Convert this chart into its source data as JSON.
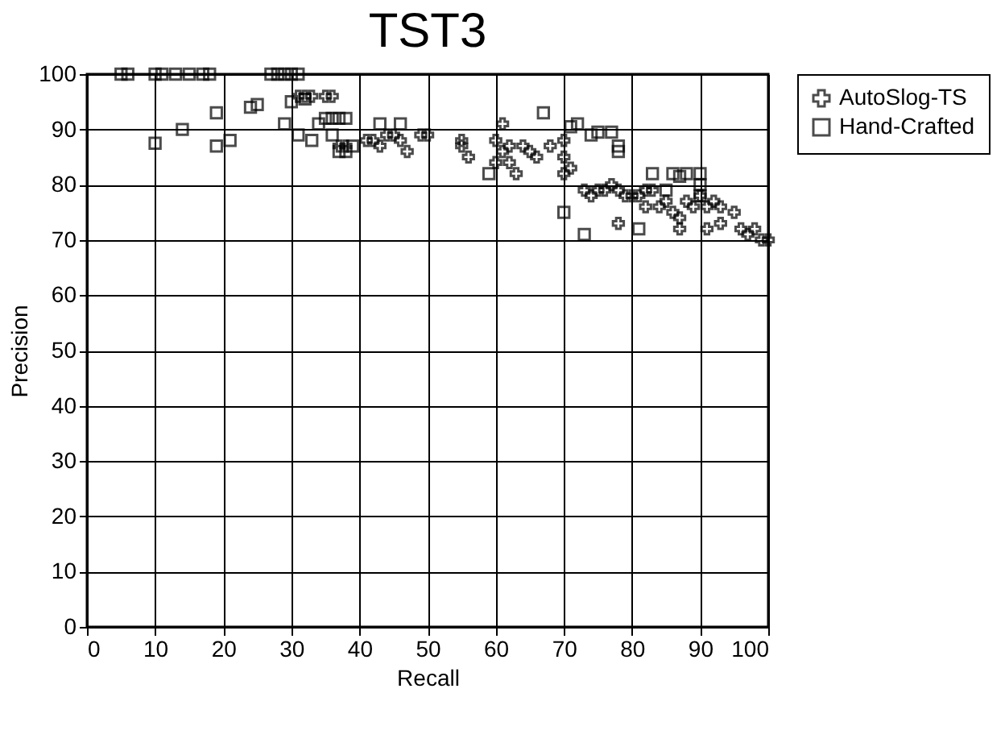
{
  "chart_data": {
    "type": "scatter",
    "title": "TST3",
    "xlabel": "Recall",
    "ylabel": "Precision",
    "xlim": [
      0,
      100
    ],
    "xticks": [
      0,
      10,
      20,
      30,
      40,
      50,
      60,
      70,
      80,
      90,
      100
    ],
    "ylim": [
      0,
      100
    ],
    "yticks": [
      0,
      10,
      20,
      30,
      40,
      50,
      60,
      70,
      80,
      90,
      100
    ],
    "grid": true,
    "legend": "right",
    "series": [
      {
        "name": "AutoSlog-TS",
        "color": "#000000",
        "marker": "cross",
        "x": [
          31,
          32,
          33,
          35,
          36,
          37,
          38,
          41,
          42,
          43,
          44,
          45,
          46,
          47,
          49,
          50,
          55,
          55,
          56,
          60,
          61,
          61,
          62,
          60,
          62,
          63,
          64,
          65,
          66,
          68,
          70,
          70,
          70,
          71,
          73,
          74,
          75,
          76,
          77,
          78,
          79,
          80,
          81,
          82,
          78,
          83,
          84,
          85,
          86,
          87,
          88,
          89,
          90,
          91,
          91,
          92,
          93,
          93,
          95,
          96,
          97,
          98,
          99,
          100,
          87,
          82
        ],
        "values": [
          96,
          96,
          96,
          96,
          96,
          87,
          87,
          88,
          88,
          87,
          89,
          89,
          88,
          86,
          89,
          89,
          88,
          87,
          85,
          88,
          91,
          86,
          87,
          84,
          84,
          82,
          87,
          86,
          85,
          87,
          88,
          85,
          82,
          83,
          79,
          78,
          79,
          79,
          80,
          79,
          78,
          78,
          78,
          79,
          73,
          79,
          76,
          77,
          75,
          74,
          77,
          76,
          78,
          76,
          72,
          77,
          76,
          73,
          75,
          72,
          71,
          72,
          70,
          70,
          72,
          76
        ]
      },
      {
        "name": "Hand-Crafted",
        "color": "#000000",
        "marker": "square",
        "x": [
          5,
          6,
          10,
          11,
          13,
          15,
          17,
          18,
          27,
          28,
          29,
          30,
          31,
          10,
          14,
          19,
          19,
          21,
          24,
          25,
          29,
          30,
          31,
          32,
          33,
          34,
          35,
          36,
          37,
          38,
          36,
          37,
          38,
          39,
          43,
          46,
          67,
          71,
          72,
          74,
          75,
          77,
          78,
          78,
          59,
          70,
          73,
          81,
          83,
          86,
          87,
          88,
          90,
          90,
          90,
          85
        ],
        "values": [
          100,
          100,
          100,
          100,
          100,
          100,
          100,
          100,
          100,
          100,
          100,
          100,
          100,
          87.5,
          90,
          87,
          93,
          88,
          94,
          94.5,
          91,
          95,
          89,
          95.5,
          88,
          91,
          92,
          92,
          92,
          92,
          89,
          86,
          86,
          87,
          91,
          91,
          93,
          90.5,
          91,
          89,
          89.5,
          89.5,
          87,
          86,
          82,
          75,
          71,
          72,
          82,
          82,
          81.5,
          82,
          82,
          80,
          78,
          79
        ]
      }
    ]
  }
}
